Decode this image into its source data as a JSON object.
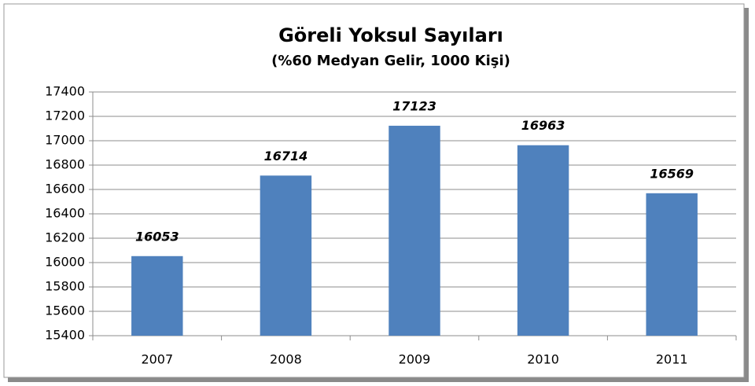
{
  "chart_data": {
    "type": "bar",
    "title": "Göreli Yoksul Sayıları",
    "subtitle": "(%60 Medyan Gelir, 1000 Kişi)",
    "categories": [
      "2007",
      "2008",
      "2009",
      "2010",
      "2011"
    ],
    "values": [
      16053,
      16714,
      17123,
      16963,
      16569
    ],
    "color": "#4f81bd",
    "ylim": [
      15400,
      17400
    ],
    "yticks": [
      15400,
      15600,
      15800,
      16000,
      16200,
      16400,
      16600,
      16800,
      17000,
      17200,
      17400
    ],
    "grid": true
  }
}
